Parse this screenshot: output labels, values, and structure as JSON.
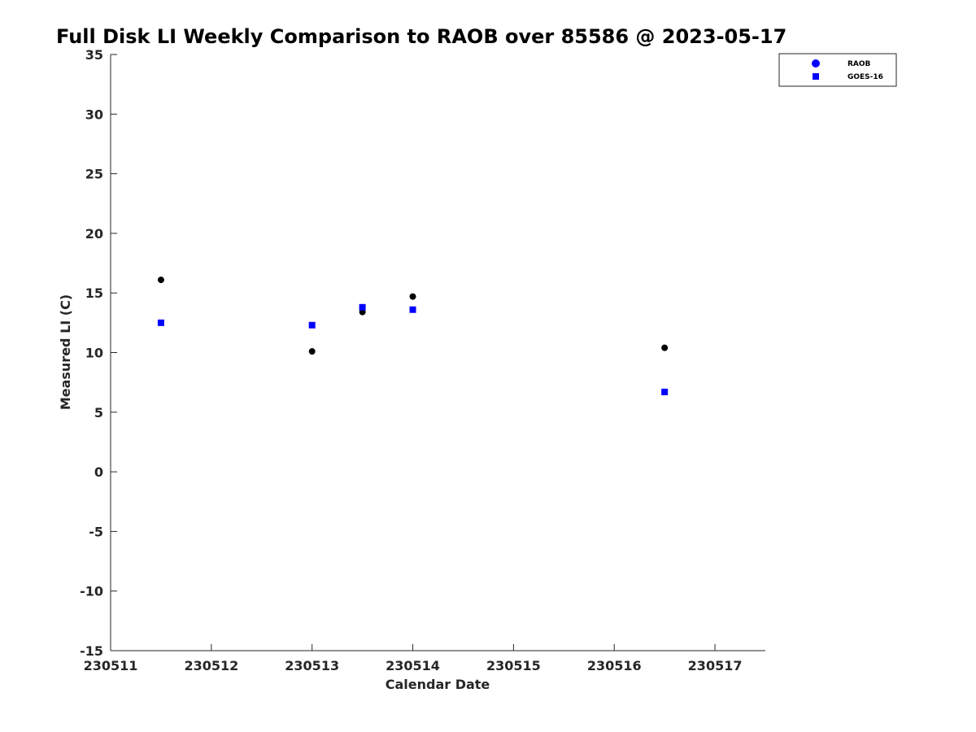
{
  "chart_data": {
    "type": "scatter",
    "title": "Full Disk LI Weekly Comparison to RAOB over 85586 @ 2023-05-17",
    "xlabel": "Calendar Date",
    "ylabel": "Measured LI (C)",
    "xlim": [
      "230511",
      "230517 12:00"
    ],
    "ylim": [
      -15,
      35
    ],
    "x_ticks": [
      "230511",
      "230512",
      "230513",
      "230514",
      "230515",
      "230516",
      "230517"
    ],
    "y_ticks": [
      35,
      30,
      25,
      20,
      15,
      10,
      5,
      0,
      -5,
      -10,
      -15
    ],
    "grid": false,
    "legend_position": "top-right",
    "series": [
      {
        "name": "RAOB",
        "marker": "circle",
        "color": "#000000",
        "legend_color": "#0000ff",
        "points": [
          {
            "x": "230511 12:00",
            "y": 16.1
          },
          {
            "x": "230513 00:00",
            "y": 10.1
          },
          {
            "x": "230513 12:00",
            "y": 13.4
          },
          {
            "x": "230514 00:00",
            "y": 14.7
          },
          {
            "x": "230516 12:00",
            "y": 10.4
          }
        ]
      },
      {
        "name": "GOES-16",
        "marker": "square",
        "color": "#0000ff",
        "legend_color": "#0000ff",
        "points": [
          {
            "x": "230511 12:00",
            "y": 12.5
          },
          {
            "x": "230513 00:00",
            "y": 12.3
          },
          {
            "x": "230513 12:00",
            "y": 13.8
          },
          {
            "x": "230514 00:00",
            "y": 13.6
          },
          {
            "x": "230516 12:00",
            "y": 6.7
          }
        ]
      }
    ]
  }
}
